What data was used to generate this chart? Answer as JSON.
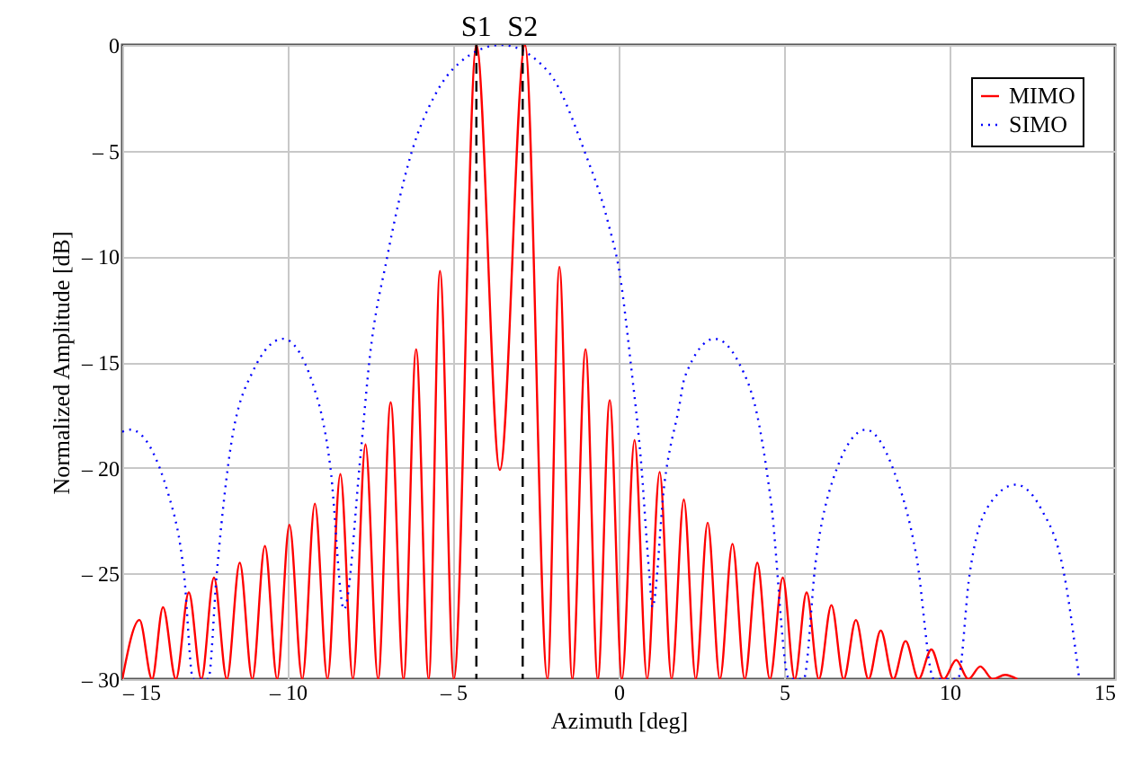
{
  "chart_data": {
    "type": "line",
    "xlabel": "Azimuth [deg]",
    "ylabel": "Normalized Amplitude [dB]",
    "xlim": [
      -15,
      15
    ],
    "xticks": [
      {
        "value": -15,
        "label": "– 15"
      },
      {
        "value": -10,
        "label": "– 10"
      },
      {
        "value": -5,
        "label": "– 5"
      },
      0,
      5,
      10,
      15
    ],
    "ylim": [
      -30,
      0
    ],
    "yticks": [
      {
        "value": -30,
        "label": "– 30"
      },
      {
        "value": -25,
        "label": "– 25"
      },
      {
        "value": -20,
        "label": "– 20"
      },
      {
        "value": -15,
        "label": "– 15"
      },
      {
        "value": -10,
        "label": "– 10"
      },
      {
        "value": -5,
        "label": "– 5"
      },
      0
    ],
    "grid": true,
    "legend": "top right",
    "series": [
      {
        "name": "MIMO",
        "color": "#ff0000",
        "line_style": "solid",
        "x": [
          -15,
          -14.48,
          -14.1,
          -13.77,
          -13.38,
          -12.99,
          -12.61,
          -12.23,
          -11.84,
          -11.45,
          -11.07,
          -10.69,
          -10.32,
          -9.95,
          -9.56,
          -9.18,
          -8.8,
          -8.41,
          -8.03,
          -7.65,
          -7.27,
          -6.89,
          -6.5,
          -6.12,
          -5.74,
          -5.4,
          -4.98,
          -4.3,
          -3.59,
          -2.83,
          -2.15,
          -1.79,
          -1.4,
          -1.0,
          -0.63,
          -0.27,
          0.1,
          0.48,
          0.86,
          1.24,
          1.6,
          1.97,
          2.33,
          2.69,
          3.06,
          3.44,
          3.81,
          4.19,
          4.57,
          4.96,
          5.32,
          5.68,
          6.05,
          6.43,
          6.8,
          7.17,
          7.55,
          7.92,
          8.3,
          8.67,
          9.06,
          9.45,
          9.82,
          10.2,
          10.57,
          10.93,
          11.3,
          11.68,
          12.05
        ],
        "values": [
          -30,
          -27.2,
          -30,
          -26.6,
          -30,
          -25.9,
          -30,
          -25.2,
          -30,
          -24.5,
          -30,
          -23.7,
          -30,
          -22.7,
          -30,
          -21.7,
          -30,
          -20.3,
          -30,
          -18.9,
          -30,
          -16.9,
          -30,
          -14.4,
          -30,
          -10.7,
          -30,
          0,
          -20.1,
          0,
          -30,
          -10.5,
          -30,
          -14.4,
          -30,
          -16.8,
          -30,
          -18.7,
          -30,
          -20.2,
          -30,
          -21.5,
          -30,
          -22.6,
          -30,
          -23.6,
          -30,
          -24.5,
          -30,
          -25.2,
          -30,
          -25.9,
          -30,
          -26.5,
          -30,
          -27.2,
          -30,
          -27.7,
          -30,
          -28.2,
          -30,
          -28.6,
          -30,
          -29.1,
          -30,
          -29.4,
          -30,
          -29.8,
          -30
        ]
      },
      {
        "name": "SIMO",
        "color": "#0000ff",
        "line_style": "dotted",
        "x": [
          -15,
          -14.75,
          -13.58,
          -13.13,
          -12.86,
          -12.4,
          -12.15,
          -11.76,
          -11.04,
          -10.14,
          -9.25,
          -8.71,
          -8.3,
          -7.8,
          -7.53,
          -6.99,
          -6.28,
          -5.56,
          -4.85,
          -3.55,
          -2.11,
          -1.04,
          -0.32,
          0.04,
          0.39,
          0.66,
          0.93,
          1.02,
          1.38,
          1.83,
          2.0,
          2.9,
          3.62,
          4.25,
          4.61,
          5.15,
          5.59,
          5.95,
          6.49,
          7.47,
          8.28,
          9.0,
          9.53,
          10.25,
          10.6,
          11.14,
          12.0,
          12.75,
          13.47,
          13.92
        ],
        "values": [
          -18.3,
          -18.2,
          -21.4,
          -25.1,
          -30,
          -30,
          -25.1,
          -19.4,
          -15.4,
          -13.9,
          -16.0,
          -20.0,
          -26.7,
          -19.4,
          -14.9,
          -10.0,
          -5.2,
          -2.4,
          -0.9,
          0,
          -1.3,
          -5.0,
          -8.4,
          -10.9,
          -15.4,
          -19.4,
          -25.1,
          -26.6,
          -20.8,
          -17.1,
          -15.7,
          -13.9,
          -15.0,
          -18.0,
          -21.7,
          -30,
          -30,
          -24.5,
          -20.5,
          -18.2,
          -20.0,
          -24.2,
          -30,
          -30,
          -25.1,
          -21.9,
          -20.8,
          -21.9,
          -25.1,
          -30
        ]
      }
    ],
    "ref_lines": [
      {
        "axis": "x",
        "value": -4.3,
        "label": "S1",
        "color": "#000000",
        "line_style": "dashed"
      },
      {
        "axis": "x",
        "value": -2.9,
        "label": "S2",
        "color": "#000000",
        "line_style": "dashed"
      }
    ]
  }
}
